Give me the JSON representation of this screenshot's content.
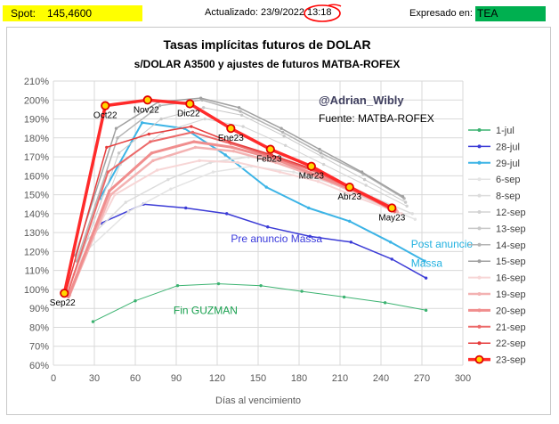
{
  "header": {
    "spot_label": "Spot:",
    "spot_value": "145,4600",
    "updated_label": "Actualizado:",
    "updated_date": "23/9/2022",
    "updated_time": "13:18",
    "expressed_label": "Expresado en:",
    "expressed_value": "TEA"
  },
  "colors": {
    "spot_bg": "#ffff00",
    "tea_bg": "#00b050",
    "annotation_red": "#ff0000"
  },
  "chart_data": {
    "type": "line",
    "title": "Tasas implícitas futuros de DOLAR",
    "subtitle": "s/DOLAR A3500 y ajustes de futuros MATBA-ROFEX",
    "xlabel": "Días al vencimiento",
    "ylabel": "",
    "xlim": [
      0,
      300
    ],
    "ylim": [
      60,
      210
    ],
    "xticks": [
      0,
      30,
      60,
      90,
      120,
      150,
      180,
      210,
      240,
      270,
      300
    ],
    "yticks": [
      60,
      70,
      80,
      90,
      100,
      110,
      120,
      130,
      140,
      150,
      160,
      170,
      180,
      190,
      200,
      210
    ],
    "grid": true,
    "legend": "right",
    "watermark": "@Adrian_Wibly",
    "source": "Fuente: MATBA-ROFEX",
    "point_labels": [
      {
        "text": "Sep22",
        "x": 8,
        "y": 98
      },
      {
        "text": "Oct22",
        "x": 38,
        "y": 197
      },
      {
        "text": "Nov22",
        "x": 68,
        "y": 200
      },
      {
        "text": "Dic22",
        "x": 99,
        "y": 198
      },
      {
        "text": "Ene23",
        "x": 130,
        "y": 185
      },
      {
        "text": "Feb23",
        "x": 158,
        "y": 174
      },
      {
        "text": "Mar23",
        "x": 189,
        "y": 165
      },
      {
        "text": "Abr23",
        "x": 217,
        "y": 154
      },
      {
        "text": "May23",
        "x": 248,
        "y": 143
      }
    ],
    "annotations": [
      {
        "text": "Pre anuncio Massa",
        "x": 130,
        "y": 125,
        "color": "#3a3adc"
      },
      {
        "text": "Post anuncio",
        "x": 262,
        "y": 122,
        "color": "#21b1e0"
      },
      {
        "text": "Massa",
        "x": 262,
        "y": 112,
        "color": "#21b1e0"
      },
      {
        "text": "Fin GUZMAN",
        "x": 88,
        "y": 87,
        "color": "#1aa150"
      }
    ],
    "series": [
      {
        "name": "1-jul",
        "color": "#3cb371",
        "width": 1,
        "x": [
          29,
          60,
          91,
          121,
          152,
          182,
          213,
          243,
          273
        ],
        "values": [
          83,
          94,
          102,
          103,
          102,
          99,
          96,
          93,
          89
        ]
      },
      {
        "name": "28-jul",
        "color": "#3b3bd6",
        "width": 1.5,
        "x": [
          35,
          66,
          97,
          127,
          157,
          188,
          218,
          248,
          273
        ],
        "values": [
          135,
          145,
          143,
          140,
          133,
          128,
          125,
          116,
          106
        ]
      },
      {
        "name": "29-jul",
        "color": "#3cb4e6",
        "width": 2,
        "x": [
          34,
          65,
          96,
          126,
          156,
          187,
          217,
          247,
          272
        ],
        "values": [
          148,
          188,
          185,
          171,
          154,
          143,
          136,
          125,
          115
        ]
      },
      {
        "name": "6-sep",
        "color": "#e4e4e4",
        "width": 1.5,
        "x": [
          25,
          55,
          86,
          117,
          145,
          176,
          204,
          235,
          265
        ],
        "values": [
          121,
          141,
          153,
          162,
          165,
          162,
          156,
          146,
          137
        ]
      },
      {
        "name": "8-sep",
        "color": "#dcdcdc",
        "width": 1.5,
        "x": [
          23,
          53,
          84,
          115,
          143,
          174,
          202,
          233,
          263
        ],
        "values": [
          125,
          146,
          158,
          167,
          170,
          167,
          160,
          149,
          140
        ]
      },
      {
        "name": "12-sep",
        "color": "#d3d3d3",
        "width": 1,
        "x": [
          19,
          49,
          80,
          111,
          139,
          170,
          198,
          229,
          259
        ],
        "values": [
          112,
          166,
          183,
          190,
          186,
          176,
          166,
          155,
          144
        ]
      },
      {
        "name": "13-sep",
        "color": "#c8c8c8",
        "width": 1,
        "x": [
          18,
          48,
          79,
          110,
          138,
          169,
          197,
          228,
          258
        ],
        "values": [
          113,
          172,
          190,
          196,
          192,
          181,
          170,
          158,
          146
        ]
      },
      {
        "name": "14-sep",
        "color": "#b4b4b4",
        "width": 1.5,
        "x": [
          17,
          47,
          78,
          109,
          137,
          168,
          196,
          227,
          257
        ],
        "values": [
          115,
          180,
          197,
          200,
          194,
          183,
          172,
          161,
          148
        ]
      },
      {
        "name": "15-sep",
        "color": "#a0a0a0",
        "width": 1.5,
        "x": [
          16,
          46,
          77,
          108,
          136,
          167,
          195,
          226,
          256
        ],
        "values": [
          118,
          185,
          199,
          201,
          196,
          185,
          174,
          162,
          149
        ]
      },
      {
        "name": "16-sep",
        "color": "#f7d6d6",
        "width": 2,
        "x": [
          15,
          45,
          76,
          107,
          135,
          166,
          194,
          225,
          255
        ],
        "values": [
          108,
          150,
          163,
          168,
          167,
          162,
          157,
          148,
          140
        ]
      },
      {
        "name": "19-sep",
        "color": "#f3b2b2",
        "width": 2.5,
        "x": [
          12,
          42,
          73,
          104,
          132,
          163,
          191,
          222,
          252
        ],
        "values": [
          97,
          150,
          168,
          175,
          173,
          167,
          160,
          151,
          141
        ]
      },
      {
        "name": "20-sep",
        "color": "#f08e8e",
        "width": 3,
        "x": [
          11,
          41,
          72,
          103,
          131,
          162,
          190,
          221,
          251
        ],
        "values": [
          96,
          152,
          172,
          178,
          175,
          169,
          161,
          152,
          142
        ]
      },
      {
        "name": "21-sep",
        "color": "#ec6a6a",
        "width": 2,
        "x": [
          10,
          40,
          71,
          102,
          130,
          161,
          189,
          220,
          250
        ],
        "values": [
          97,
          162,
          178,
          183,
          177,
          170,
          163,
          153,
          141
        ]
      },
      {
        "name": "22-sep",
        "color": "#e63c3c",
        "width": 1.5,
        "x": [
          9,
          39,
          70,
          101,
          129,
          160,
          188,
          219,
          249
        ],
        "values": [
          98,
          175,
          182,
          186,
          178,
          171,
          164,
          154,
          142
        ]
      },
      {
        "name": "23-sep",
        "color": "#ff2a2a",
        "width": 3.5,
        "marker": true,
        "x": [
          8,
          38,
          69,
          100,
          130,
          159,
          189,
          217,
          248
        ],
        "values": [
          98,
          197,
          200,
          198,
          185,
          174,
          165,
          154,
          143
        ]
      }
    ]
  }
}
